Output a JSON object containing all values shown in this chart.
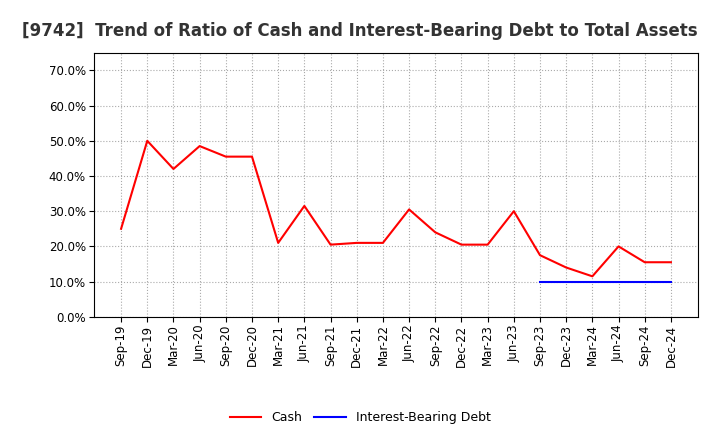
{
  "title": "[9742]  Trend of Ratio of Cash and Interest-Bearing Debt to Total Assets",
  "x_labels": [
    "Sep-19",
    "Dec-19",
    "Mar-20",
    "Jun-20",
    "Sep-20",
    "Dec-20",
    "Mar-21",
    "Jun-21",
    "Sep-21",
    "Dec-21",
    "Mar-22",
    "Jun-22",
    "Sep-22",
    "Dec-22",
    "Mar-23",
    "Jun-23",
    "Sep-23",
    "Dec-23",
    "Mar-24",
    "Jun-24",
    "Sep-24",
    "Dec-24"
  ],
  "cash": [
    0.25,
    0.5,
    0.42,
    0.485,
    0.455,
    0.455,
    0.21,
    0.315,
    0.205,
    0.21,
    0.21,
    0.305,
    0.24,
    0.205,
    0.205,
    0.3,
    0.175,
    0.14,
    0.115,
    0.2,
    0.155,
    0.155
  ],
  "interest_bearing_debt": [
    null,
    null,
    null,
    null,
    null,
    null,
    null,
    null,
    null,
    null,
    null,
    null,
    null,
    null,
    null,
    null,
    0.098,
    0.098,
    0.098,
    0.098,
    0.098,
    0.098
  ],
  "cash_color": "#FF0000",
  "debt_color": "#0000FF",
  "ylim": [
    0.0,
    0.75
  ],
  "yticks": [
    0.0,
    0.1,
    0.2,
    0.3,
    0.4,
    0.5,
    0.6,
    0.7
  ],
  "ytick_labels": [
    "0.0%",
    "10.0%",
    "20.0%",
    "30.0%",
    "40.0%",
    "50.0%",
    "60.0%",
    "70.0%"
  ],
  "background_color": "#FFFFFF",
  "plot_bg_color": "#FFFFFF",
  "grid_color": "#AAAAAA",
  "legend_cash": "Cash",
  "legend_debt": "Interest-Bearing Debt",
  "title_fontsize": 12,
  "tick_fontsize": 8.5
}
